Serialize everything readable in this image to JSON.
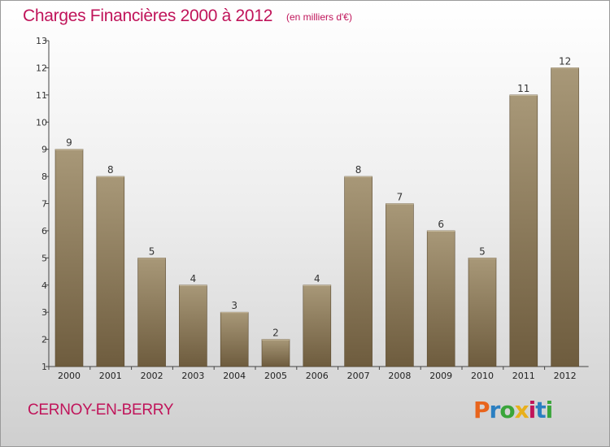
{
  "header": {
    "title": "Charges Financières 2000 à 2012",
    "subtitle": "(en milliers d'€)"
  },
  "footer": {
    "commune": "CERNOY-EN-BERRY",
    "logo_text": "Proxiti",
    "logo_colors": [
      "#e8641c",
      "#2b7fc1",
      "#3aa53a",
      "#e8b01c",
      "#c0145a",
      "#2b7fc1",
      "#3aa53a"
    ]
  },
  "colors": {
    "title": "#c0145a",
    "bar_light": "#a89878",
    "bar_dark": "#6e5c3e",
    "axis": "#444444"
  },
  "chart_data": {
    "type": "bar",
    "title": "Charges Financières 2000 à 2012",
    "subtitle": "(en milliers d'€)",
    "categories": [
      "2000",
      "2001",
      "2002",
      "2003",
      "2004",
      "2005",
      "2006",
      "2007",
      "2008",
      "2009",
      "2010",
      "2011",
      "2012"
    ],
    "values": [
      9,
      8,
      5,
      4,
      3,
      2,
      4,
      8,
      7,
      6,
      5,
      11,
      12
    ],
    "ylim": [
      1,
      13
    ],
    "yticks": [
      1,
      2,
      3,
      4,
      5,
      6,
      7,
      8,
      9,
      10,
      11,
      12,
      13
    ],
    "xlabel": "",
    "ylabel": "",
    "grid": false,
    "data_labels": true
  }
}
